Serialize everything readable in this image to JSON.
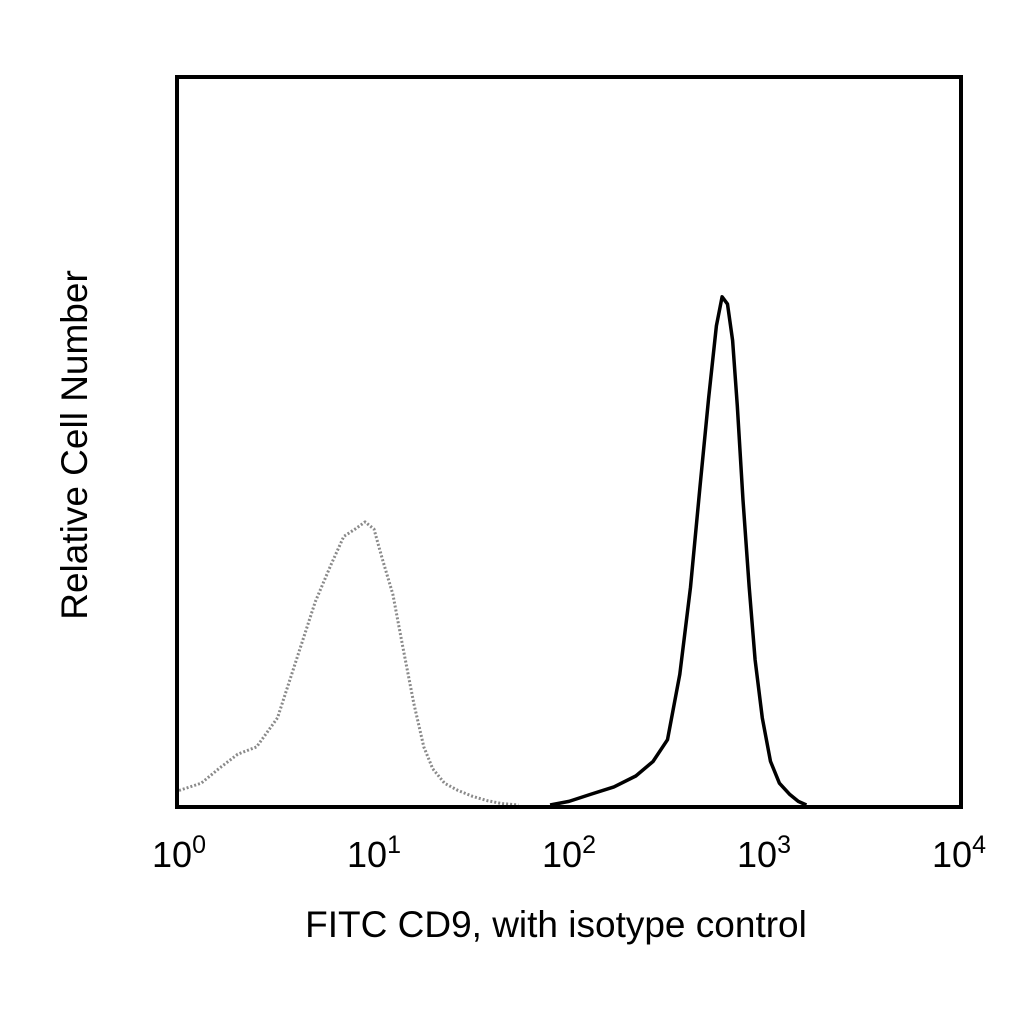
{
  "chart_data": {
    "type": "line",
    "title": "",
    "xlabel": "FITC CD9, with isotype control",
    "ylabel": "Relative Cell Number",
    "xscale": "log",
    "xlim": [
      1,
      10000
    ],
    "ylim": [
      0,
      100
    ],
    "grid": false,
    "x_ticks": [
      {
        "value": 1,
        "base": "10",
        "exp": "0"
      },
      {
        "value": 10,
        "base": "10",
        "exp": "1"
      },
      {
        "value": 100,
        "base": "10",
        "exp": "2"
      },
      {
        "value": 1000,
        "base": "10",
        "exp": "3"
      },
      {
        "value": 10000,
        "base": "10",
        "exp": "4"
      }
    ],
    "series": [
      {
        "style": "dotted-gray",
        "color": "#8a8a8a",
        "x": [
          1.0,
          1.3,
          1.6,
          2.0,
          2.5,
          3.2,
          4.0,
          5.0,
          6.0,
          7.0,
          8.0,
          9.0,
          10.0,
          11.0,
          12.5,
          14.0,
          16.0,
          18.0,
          20.0,
          23.0,
          27.0,
          32.0,
          38.0,
          45.0,
          55.0
        ],
        "y": [
          2,
          3,
          5,
          7,
          8,
          12,
          20,
          28,
          33,
          37,
          38,
          39,
          38,
          34,
          29,
          22,
          14,
          8,
          5,
          3,
          2,
          1.2,
          0.6,
          0.2,
          0
        ]
      },
      {
        "style": "solid-black",
        "color": "#000000",
        "x": [
          80,
          100,
          130,
          170,
          220,
          270,
          320,
          370,
          420,
          470,
          520,
          570,
          610,
          650,
          690,
          730,
          780,
          840,
          900,
          980,
          1080,
          1200,
          1350,
          1500,
          1650
        ],
        "y": [
          0,
          0.5,
          1.5,
          2.5,
          4,
          6,
          9,
          18,
          30,
          44,
          56,
          66,
          70,
          69,
          64,
          55,
          42,
          30,
          20,
          12,
          6,
          3,
          1.5,
          0.5,
          0
        ]
      }
    ]
  }
}
